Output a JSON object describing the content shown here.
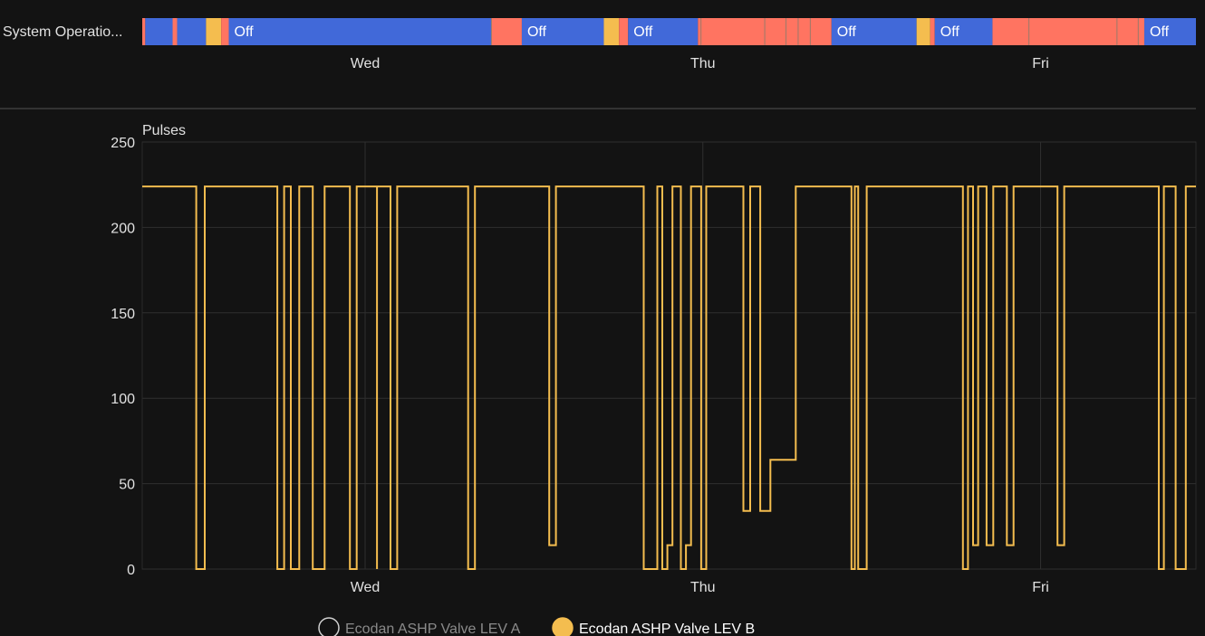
{
  "timeline": {
    "label": "System Operatio...",
    "off_label": "Off",
    "colors": {
      "off": "#4169d9",
      "heating": "#ff7461",
      "dhw": "#f4bd4f",
      "divider": "#9a7a6a"
    },
    "segments": [
      {
        "start": 0.0,
        "end": 0.01,
        "state": "heating"
      },
      {
        "start": 0.01,
        "end": 0.1,
        "state": "off"
      },
      {
        "start": 0.1,
        "end": 0.115,
        "state": "heating"
      },
      {
        "start": 0.115,
        "end": 0.21,
        "state": "off"
      },
      {
        "start": 0.21,
        "end": 0.26,
        "state": "dhw"
      },
      {
        "start": 0.26,
        "end": 0.285,
        "state": "heating"
      },
      {
        "start": 0.285,
        "end": 1.15,
        "state": "off",
        "label": true
      },
      {
        "start": 1.15,
        "end": 1.25,
        "state": "heating"
      },
      {
        "start": 1.25,
        "end": 1.52,
        "state": "off",
        "label": true
      },
      {
        "start": 1.52,
        "end": 1.57,
        "state": "dhw"
      },
      {
        "start": 1.57,
        "end": 1.6,
        "state": "heating"
      },
      {
        "start": 1.6,
        "end": 1.83,
        "state": "off",
        "label": true
      },
      {
        "start": 1.83,
        "end": 2.27,
        "state": "heating"
      },
      {
        "start": 2.27,
        "end": 2.55,
        "state": "off",
        "label": true
      },
      {
        "start": 2.55,
        "end": 2.595,
        "state": "dhw"
      },
      {
        "start": 2.595,
        "end": 2.61,
        "state": "heating"
      },
      {
        "start": 2.61,
        "end": 2.8,
        "state": "off",
        "label": true
      },
      {
        "start": 2.8,
        "end": 3.3,
        "state": "heating"
      },
      {
        "start": 3.3,
        "end": 3.47,
        "state": "off",
        "label": true
      }
    ],
    "dividers": [
      1.15,
      1.84,
      2.05,
      2.12,
      2.16,
      2.2,
      2.92,
      3.21,
      3.28
    ]
  },
  "chart_data": {
    "type": "line",
    "ylabel": "Pulses",
    "ylim": [
      0,
      250
    ],
    "yticks": [
      0,
      50,
      100,
      150,
      200,
      250
    ],
    "xlim": [
      -0.66,
      2.46
    ],
    "xticks": [
      {
        "value": 0,
        "label": "Wed"
      },
      {
        "value": 1,
        "label": "Thu"
      },
      {
        "value": 2,
        "label": "Fri"
      }
    ],
    "series": [
      {
        "name": "Ecodan ASHP Valve LEV A",
        "color": "#d0d0d0",
        "visible": false,
        "points": []
      },
      {
        "name": "Ecodan ASHP Valve LEV B",
        "color": "#f4bd4f",
        "visible": true,
        "step": true,
        "points": [
          [
            -0.66,
            224
          ],
          [
            -0.5,
            0
          ],
          [
            -0.475,
            224
          ],
          [
            -0.26,
            0
          ],
          [
            -0.24,
            224
          ],
          [
            -0.22,
            0
          ],
          [
            -0.195,
            224
          ],
          [
            -0.155,
            0
          ],
          [
            -0.12,
            224
          ],
          [
            -0.045,
            0
          ],
          [
            -0.025,
            224
          ],
          [
            0.035,
            0
          ],
          [
            0.035,
            224
          ],
          [
            0.075,
            0
          ],
          [
            0.095,
            224
          ],
          [
            0.305,
            0
          ],
          [
            0.325,
            224
          ],
          [
            0.545,
            14
          ],
          [
            0.565,
            224
          ],
          [
            0.825,
            0
          ],
          [
            0.865,
            224
          ],
          [
            0.88,
            0
          ],
          [
            0.895,
            14
          ],
          [
            0.91,
            224
          ],
          [
            0.935,
            0
          ],
          [
            0.95,
            14
          ],
          [
            0.965,
            224
          ],
          [
            0.995,
            0
          ],
          [
            1.01,
            224
          ],
          [
            1.12,
            34
          ],
          [
            1.14,
            224
          ],
          [
            1.17,
            34
          ],
          [
            1.2,
            64
          ],
          [
            1.275,
            224
          ],
          [
            1.44,
            0
          ],
          [
            1.45,
            224
          ],
          [
            1.46,
            0
          ],
          [
            1.485,
            224
          ],
          [
            1.77,
            0
          ],
          [
            1.785,
            224
          ],
          [
            1.8,
            14
          ],
          [
            1.815,
            224
          ],
          [
            1.84,
            14
          ],
          [
            1.86,
            224
          ],
          [
            1.9,
            14
          ],
          [
            1.92,
            224
          ],
          [
            2.05,
            14
          ],
          [
            2.07,
            224
          ],
          [
            2.35,
            0
          ],
          [
            2.365,
            224
          ],
          [
            2.4,
            0
          ],
          [
            2.43,
            224
          ],
          [
            2.46,
            224
          ]
        ]
      }
    ]
  }
}
